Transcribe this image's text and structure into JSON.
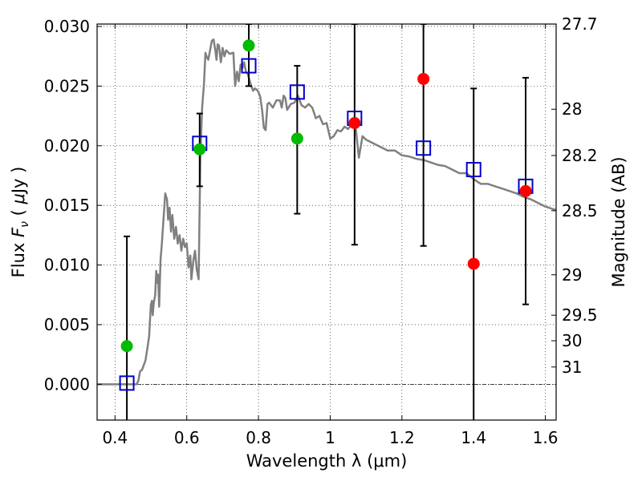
{
  "chart_data": {
    "type": "scatter",
    "xlabel": "Wavelength  λ (μm)",
    "ylabel": "Flux  F_ν  ( μJy )",
    "ylabel_right": "Magnitude (AB)",
    "xlim": [
      0.35,
      1.63
    ],
    "ylim": [
      -0.003,
      0.0302
    ],
    "grid": true,
    "x_ticks": [
      0.4,
      0.6,
      0.8,
      1.0,
      1.2,
      1.4,
      1.6
    ],
    "x_tick_labels": [
      "0.4",
      "0.6",
      "0.8",
      "1",
      "1.2",
      "1.4",
      "1.6"
    ],
    "y_ticks": [
      0.0,
      0.005,
      0.01,
      0.015,
      0.02,
      0.025,
      0.03
    ],
    "y_tick_labels": [
      "0.000",
      "0.005",
      "0.010",
      "0.015",
      "0.020",
      "0.025",
      "0.030"
    ],
    "right_ticks": [
      {
        "label": "27.7",
        "flux": 0.0302
      },
      {
        "label": "28",
        "flux": 0.02306
      },
      {
        "label": "28.2",
        "flux": 0.01918
      },
      {
        "label": "28.5",
        "flux": 0.01455
      },
      {
        "label": "29",
        "flux": 0.00918
      },
      {
        "label": "29.5",
        "flux": 0.00579
      },
      {
        "label": "30",
        "flux": 0.00365
      },
      {
        "label": "31",
        "flux": 0.00145
      }
    ],
    "colors": {
      "template": "#808080",
      "detection": "#00bb00",
      "upper": "#ff0000",
      "model": "#0000cc",
      "errorbar": "#000000"
    },
    "series": [
      {
        "type": "line",
        "points": [
          [
            0.35,
            0.0
          ],
          [
            0.46,
            0.0
          ],
          [
            0.465,
            0.0003
          ],
          [
            0.47,
            0.0011
          ],
          [
            0.475,
            0.0012
          ],
          [
            0.48,
            0.0016
          ],
          [
            0.485,
            0.002
          ],
          [
            0.49,
            0.003
          ],
          [
            0.495,
            0.004
          ],
          [
            0.5,
            0.0067
          ],
          [
            0.503,
            0.007
          ],
          [
            0.505,
            0.0058
          ],
          [
            0.508,
            0.0068
          ],
          [
            0.512,
            0.0075
          ],
          [
            0.515,
            0.0095
          ],
          [
            0.518,
            0.0085
          ],
          [
            0.52,
            0.0092
          ],
          [
            0.523,
            0.0065
          ],
          [
            0.527,
            0.0105
          ],
          [
            0.53,
            0.0115
          ],
          [
            0.535,
            0.0138
          ],
          [
            0.54,
            0.016
          ],
          [
            0.545,
            0.0155
          ],
          [
            0.548,
            0.0138
          ],
          [
            0.552,
            0.0148
          ],
          [
            0.556,
            0.0128
          ],
          [
            0.56,
            0.0142
          ],
          [
            0.565,
            0.0122
          ],
          [
            0.57,
            0.0132
          ],
          [
            0.575,
            0.0118
          ],
          [
            0.58,
            0.0125
          ],
          [
            0.585,
            0.0112
          ],
          [
            0.59,
            0.0122
          ],
          [
            0.595,
            0.0115
          ],
          [
            0.6,
            0.0118
          ],
          [
            0.605,
            0.0098
          ],
          [
            0.61,
            0.0108
          ],
          [
            0.613,
            0.0088
          ],
          [
            0.618,
            0.0103
          ],
          [
            0.623,
            0.0112
          ],
          [
            0.628,
            0.0096
          ],
          [
            0.633,
            0.0088
          ],
          [
            0.638,
            0.0192
          ],
          [
            0.643,
            0.0232
          ],
          [
            0.648,
            0.0252
          ],
          [
            0.652,
            0.0278
          ],
          [
            0.655,
            0.0275
          ],
          [
            0.66,
            0.0272
          ],
          [
            0.665,
            0.028
          ],
          [
            0.67,
            0.0288
          ],
          [
            0.675,
            0.0289
          ],
          [
            0.68,
            0.0279
          ],
          [
            0.683,
            0.0272
          ],
          [
            0.686,
            0.0285
          ],
          [
            0.69,
            0.0284
          ],
          [
            0.695,
            0.027
          ],
          [
            0.7,
            0.0282
          ],
          [
            0.705,
            0.0275
          ],
          [
            0.71,
            0.028
          ],
          [
            0.72,
            0.0277
          ],
          [
            0.73,
            0.0278
          ],
          [
            0.735,
            0.025
          ],
          [
            0.74,
            0.0262
          ],
          [
            0.745,
            0.0254
          ],
          [
            0.75,
            0.0268
          ],
          [
            0.755,
            0.0265
          ],
          [
            0.76,
            0.027
          ],
          [
            0.765,
            0.0262
          ],
          [
            0.77,
            0.026
          ],
          [
            0.775,
            0.0255
          ],
          [
            0.78,
            0.025
          ],
          [
            0.785,
            0.0246
          ],
          [
            0.79,
            0.0248
          ],
          [
            0.795,
            0.0247
          ],
          [
            0.8,
            0.0245
          ],
          [
            0.805,
            0.0241
          ],
          [
            0.81,
            0.023
          ],
          [
            0.815,
            0.0215
          ],
          [
            0.82,
            0.0213
          ],
          [
            0.825,
            0.0235
          ],
          [
            0.83,
            0.0236
          ],
          [
            0.84,
            0.0232
          ],
          [
            0.85,
            0.0238
          ],
          [
            0.86,
            0.0238
          ],
          [
            0.865,
            0.0232
          ],
          [
            0.87,
            0.0242
          ],
          [
            0.875,
            0.024
          ],
          [
            0.88,
            0.023
          ],
          [
            0.89,
            0.0235
          ],
          [
            0.9,
            0.0236
          ],
          [
            0.91,
            0.0242
          ],
          [
            0.92,
            0.0234
          ],
          [
            0.93,
            0.0232
          ],
          [
            0.94,
            0.0235
          ],
          [
            0.95,
            0.0232
          ],
          [
            0.96,
            0.0223
          ],
          [
            0.97,
            0.0225
          ],
          [
            0.98,
            0.0218
          ],
          [
            0.99,
            0.0219
          ],
          [
            1.0,
            0.0206
          ],
          [
            1.01,
            0.0208
          ],
          [
            1.02,
            0.0213
          ],
          [
            1.03,
            0.0212
          ],
          [
            1.04,
            0.0216
          ],
          [
            1.05,
            0.0214
          ],
          [
            1.06,
            0.0218
          ],
          [
            1.07,
            0.0218
          ],
          [
            1.08,
            0.019
          ],
          [
            1.09,
            0.0208
          ],
          [
            1.1,
            0.0205
          ],
          [
            1.12,
            0.0202
          ],
          [
            1.14,
            0.0199
          ],
          [
            1.16,
            0.0196
          ],
          [
            1.18,
            0.0196
          ],
          [
            1.2,
            0.0192
          ],
          [
            1.22,
            0.0191
          ],
          [
            1.24,
            0.0189
          ],
          [
            1.26,
            0.0188
          ],
          [
            1.28,
            0.0186
          ],
          [
            1.3,
            0.0184
          ],
          [
            1.32,
            0.0183
          ],
          [
            1.34,
            0.018
          ],
          [
            1.36,
            0.0177
          ],
          [
            1.38,
            0.0177
          ],
          [
            1.4,
            0.0172
          ],
          [
            1.42,
            0.0168
          ],
          [
            1.44,
            0.0168
          ],
          [
            1.46,
            0.0166
          ],
          [
            1.48,
            0.0164
          ],
          [
            1.5,
            0.0162
          ],
          [
            1.52,
            0.016
          ],
          [
            1.54,
            0.0157
          ],
          [
            1.56,
            0.0155
          ],
          [
            1.58,
            0.0152
          ],
          [
            1.6,
            0.0149
          ],
          [
            1.63,
            0.0146
          ]
        ]
      },
      {
        "type": "scatter",
        "points": [
          [
            0.433,
            0.0032
          ],
          [
            0.636,
            0.0197
          ],
          [
            0.773,
            0.0284
          ],
          [
            0.908,
            0.0206
          ]
        ]
      },
      {
        "type": "scatter",
        "points": [
          [
            1.068,
            0.0219
          ],
          [
            1.26,
            0.0256
          ],
          [
            1.4,
            0.0101
          ],
          [
            1.545,
            0.0162
          ]
        ]
      },
      {
        "type": "scatter",
        "points": [
          [
            0.433,
            0.0001
          ],
          [
            0.636,
            0.0202
          ],
          [
            0.773,
            0.0267
          ],
          [
            0.908,
            0.0245
          ],
          [
            1.068,
            0.0223
          ],
          [
            1.26,
            0.0198
          ],
          [
            1.4,
            0.018
          ],
          [
            1.545,
            0.0166
          ]
        ]
      },
      {
        "type": "errorbar",
        "points": [
          {
            "x": 0.433,
            "y": 0.0001,
            "low": -0.0035,
            "high": 0.0124
          },
          {
            "x": 0.636,
            "y": 0.0202,
            "low": 0.0166,
            "high": 0.0227
          },
          {
            "x": 0.773,
            "y": 0.0267,
            "low": 0.025,
            "high": 0.0302
          },
          {
            "x": 0.908,
            "y": 0.0245,
            "low": 0.0143,
            "high": 0.0267
          },
          {
            "x": 1.068,
            "y": 0.0223,
            "low": 0.0117,
            "high": 0.0302
          },
          {
            "x": 1.26,
            "y": 0.0198,
            "low": 0.0116,
            "high": 0.0302
          },
          {
            "x": 1.4,
            "y": 0.018,
            "low": -0.0035,
            "high": 0.0248
          },
          {
            "x": 1.545,
            "y": 0.0166,
            "low": 0.0067,
            "high": 0.0257
          }
        ]
      }
    ]
  }
}
